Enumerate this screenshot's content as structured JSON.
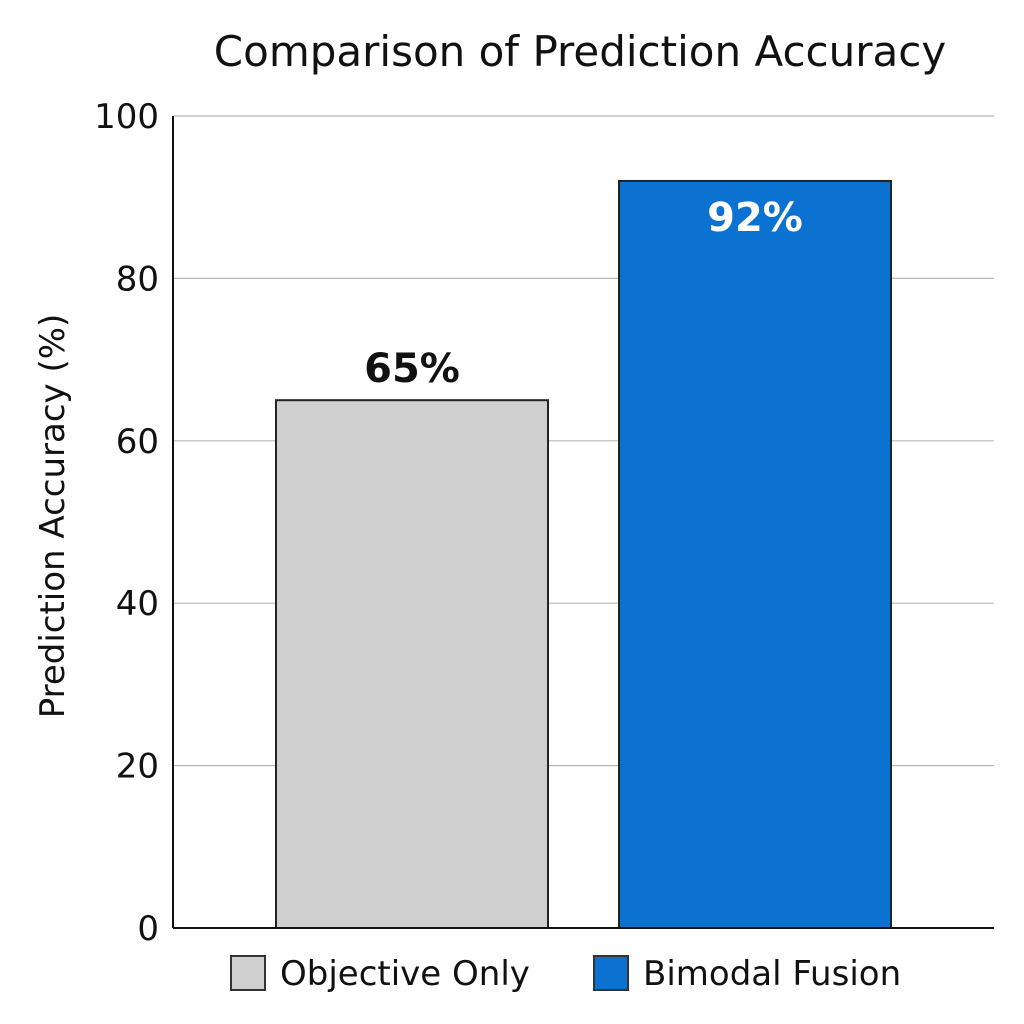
{
  "chart_data": {
    "type": "bar",
    "title": "Comparison of Prediction Accuracy",
    "xlabel": "",
    "ylabel": "Prediction Accuracy (%)",
    "ylim": [
      0,
      100
    ],
    "yticks": [
      "0",
      "20",
      "40",
      "60",
      "80",
      "100"
    ],
    "grid": true,
    "legend_position": "bottom",
    "categories": [
      "Objective Only",
      "Bimodal Fusion"
    ],
    "values": [
      65,
      92
    ],
    "data_labels": [
      "65%",
      "92%"
    ],
    "colors": [
      "#cfcfcf",
      "#0b72d1"
    ],
    "label_colors": [
      "#111111",
      "#ffffff"
    ],
    "legend": [
      {
        "name": "Objective Only",
        "color": "#cfcfcf"
      },
      {
        "name": "Bimodal Fusion",
        "color": "#0b72d1"
      }
    ]
  }
}
